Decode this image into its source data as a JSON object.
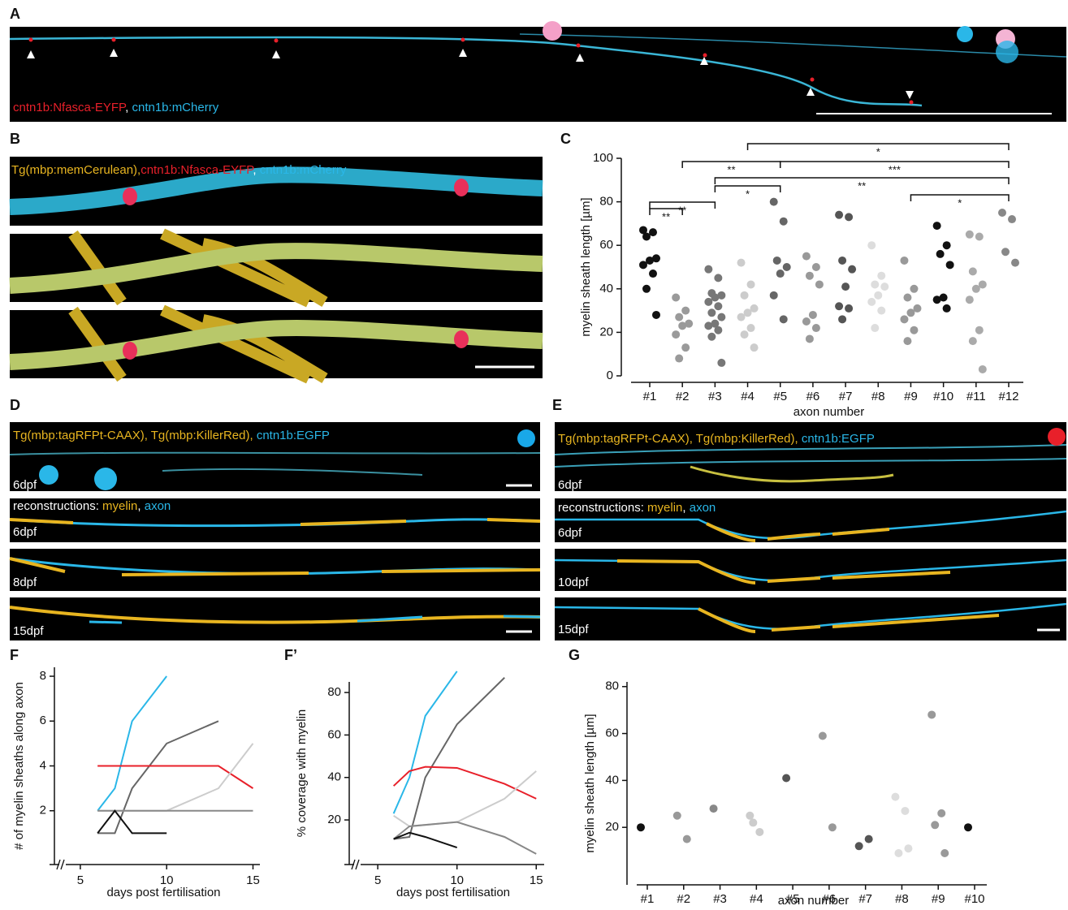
{
  "panels": [
    {
      "label": "A",
      "captions": [
        [
          {
            "text": "cntn1b:Nfasca-EYFP",
            "color": "#e8202a"
          },
          {
            "text": ", ",
            "color": "#ffffff"
          },
          {
            "text": "cntn1b:mCherry",
            "color": "#2ab7e8"
          }
        ]
      ]
    },
    {
      "label": "B",
      "captions": [
        [
          {
            "text": "Tg(mbp:memCerulean),",
            "color": "#e8b520"
          },
          {
            "text": "cntn1b:Nfasca-EYFP",
            "color": "#e8202a"
          },
          {
            "text": ", ",
            "color": "#ffffff"
          },
          {
            "text": "cntn1b:mCherry",
            "color": "#2ab7e8"
          }
        ]
      ]
    },
    {
      "label": "C"
    },
    {
      "label": "D",
      "captions": [
        [
          {
            "text": "Tg(mbp:tagRFPt-CAAX), Tg(mbp:KillerRed), ",
            "color": "#e8b520"
          },
          {
            "text": "cntn1b:EGFP",
            "color": "#2ab7e8"
          }
        ],
        [
          {
            "text": "6dpf",
            "color": "#ffffff"
          }
        ],
        [
          {
            "text": "reconstructions: ",
            "color": "#ffffff"
          },
          {
            "text": "myelin",
            "color": "#e8b520"
          },
          {
            "text": ", ",
            "color": "#ffffff"
          },
          {
            "text": "axon",
            "color": "#2ab7e8"
          }
        ],
        [
          {
            "text": "6dpf",
            "color": "#ffffff"
          }
        ],
        [
          {
            "text": "8dpf",
            "color": "#ffffff"
          }
        ],
        [
          {
            "text": "15dpf",
            "color": "#ffffff"
          }
        ]
      ]
    },
    {
      "label": "E",
      "captions": [
        [
          {
            "text": "Tg(mbp:tagRFPt-CAAX), Tg(mbp:KillerRed), ",
            "color": "#e8b520"
          },
          {
            "text": "cntn1b:EGFP",
            "color": "#2ab7e8"
          }
        ],
        [
          {
            "text": "6dpf",
            "color": "#ffffff"
          }
        ],
        [
          {
            "text": "reconstructions: ",
            "color": "#ffffff"
          },
          {
            "text": "myelin",
            "color": "#e8b520"
          },
          {
            "text": ", ",
            "color": "#ffffff"
          },
          {
            "text": "axon",
            "color": "#2ab7e8"
          }
        ],
        [
          {
            "text": "6dpf",
            "color": "#ffffff"
          }
        ],
        [
          {
            "text": "10dpf",
            "color": "#ffffff"
          }
        ],
        [
          {
            "text": "15dpf",
            "color": "#ffffff"
          }
        ]
      ]
    },
    {
      "label": "F"
    },
    {
      "label": "F’"
    },
    {
      "label": "G"
    }
  ],
  "chart_data": [
    {
      "type": "strip",
      "ylabel": "myelin sheath length [µm]",
      "xlabel": "axon number",
      "categories": [
        "#1",
        "#2",
        "#3",
        "#4",
        "#5",
        "#6",
        "#7",
        "#8",
        "#9",
        "#10",
        "#11",
        "#12"
      ],
      "colors": [
        "#111111",
        "#9a9a9a",
        "#777777",
        "#cccccc",
        "#666666",
        "#999999",
        "#555555",
        "#dddddd",
        "#999999",
        "#111111",
        "#aaaaaa",
        "#888888"
      ],
      "values": [
        [
          67,
          66,
          64,
          54,
          53,
          51,
          47,
          40,
          28
        ],
        [
          36,
          30,
          27,
          24,
          23,
          19,
          13,
          8
        ],
        [
          49,
          45,
          38,
          37,
          36,
          34,
          32,
          29,
          27,
          24,
          23,
          21,
          18,
          6
        ],
        [
          52,
          42,
          37,
          31,
          29,
          27,
          22,
          19,
          13
        ],
        [
          80,
          71,
          53,
          50,
          47,
          37,
          26
        ],
        [
          55,
          50,
          46,
          42,
          28,
          25,
          22,
          17
        ],
        [
          74,
          73,
          53,
          49,
          41,
          32,
          31,
          26
        ],
        [
          60,
          46,
          42,
          41,
          37,
          34,
          30,
          22
        ],
        [
          53,
          40,
          36,
          31,
          29,
          26,
          21,
          16
        ],
        [
          69,
          60,
          56,
          51,
          36,
          35,
          31
        ],
        [
          65,
          64,
          48,
          42,
          40,
          35,
          21,
          16,
          3
        ],
        [
          75,
          72,
          57,
          52
        ]
      ],
      "ylim": [
        0,
        100
      ],
      "yticks": [
        0,
        20,
        40,
        60,
        80,
        100
      ],
      "comparisons": [
        {
          "from": "#4",
          "to": "#12",
          "label": "*"
        },
        {
          "from": "#2",
          "to": "#5",
          "label": "**"
        },
        {
          "from": "#5",
          "to": "#12",
          "label": "***"
        },
        {
          "from": "#3",
          "to": "#12",
          "label": "**"
        },
        {
          "from": "#3",
          "to": "#5",
          "label": "*"
        },
        {
          "from": "#9",
          "to": "#12",
          "label": "*"
        },
        {
          "from": "#1",
          "to": "#3",
          "label": "**"
        },
        {
          "from": "#1",
          "to": "#2",
          "label": "**"
        }
      ]
    },
    {
      "type": "line",
      "ylabel": "# of myelin sheaths along axon",
      "xlabel": "days post fertilisation",
      "xlim": [
        3.5,
        15.4
      ],
      "xticks": [
        5,
        10,
        15
      ],
      "ylim": [
        -0.4,
        8.4
      ],
      "yticks": [
        2,
        4,
        6,
        8
      ],
      "series": [
        {
          "color": "#2ab7e8",
          "x": [
            6,
            7,
            8,
            10
          ],
          "values": [
            2,
            3,
            6,
            8
          ]
        },
        {
          "color": "#666666",
          "x": [
            6,
            7,
            8,
            10,
            13
          ],
          "values": [
            1,
            1,
            3,
            5,
            6
          ]
        },
        {
          "color": "#e8202a",
          "x": [
            6,
            13,
            15
          ],
          "values": [
            4,
            4,
            3
          ]
        },
        {
          "color": "#cccccc",
          "x": [
            6,
            10,
            13,
            15
          ],
          "values": [
            2,
            2,
            3,
            5
          ]
        },
        {
          "color": "#888888",
          "x": [
            6,
            15
          ],
          "values": [
            2,
            2
          ]
        },
        {
          "color": "#111111",
          "x": [
            6,
            7,
            8,
            10
          ],
          "values": [
            1,
            2,
            1,
            1
          ]
        }
      ]
    },
    {
      "type": "line",
      "ylabel": "% coverage with myelin",
      "xlabel": "days post fertilisation",
      "xlim": [
        3.2,
        15.5
      ],
      "xticks": [
        5,
        10,
        15
      ],
      "ylim": [
        -1,
        85
      ],
      "yticks": [
        20,
        40,
        60,
        80
      ],
      "series": [
        {
          "color": "#2ab7e8",
          "x": [
            6,
            7,
            8,
            10
          ],
          "values": [
            23,
            40,
            69,
            90
          ]
        },
        {
          "color": "#666666",
          "x": [
            6,
            7,
            8,
            10,
            13
          ],
          "values": [
            11,
            12,
            40,
            65,
            87
          ]
        },
        {
          "color": "#e8202a",
          "x": [
            6,
            7,
            8,
            10,
            13,
            15
          ],
          "values": [
            36,
            43,
            45,
            44.5,
            37,
            30
          ]
        },
        {
          "color": "#cccccc",
          "x": [
            6,
            7,
            10,
            13,
            15
          ],
          "values": [
            22,
            17,
            19,
            30,
            43
          ]
        },
        {
          "color": "#888888",
          "x": [
            6,
            7,
            10,
            13,
            15
          ],
          "values": [
            11,
            17,
            19,
            12,
            4
          ]
        },
        {
          "color": "#111111",
          "x": [
            6,
            7,
            8,
            10
          ],
          "values": [
            11,
            14,
            12,
            7
          ]
        }
      ]
    },
    {
      "type": "strip",
      "ylabel": "myelin sheath length [µm]",
      "xlabel": "axon number",
      "categories": [
        "#1",
        "#2",
        "#3",
        "#4",
        "#5",
        "#6",
        "#7",
        "#8",
        "#9",
        "#10"
      ],
      "colors": [
        "#111111",
        "#999999",
        "#888888",
        "#cccccc",
        "#555555",
        "#999999",
        "#555555",
        "#dddddd",
        "#999999",
        "#111111"
      ],
      "values": [
        [
          20
        ],
        [
          25,
          15
        ],
        [
          28
        ],
        [
          25,
          18,
          22
        ],
        [
          41
        ],
        [
          59,
          20
        ],
        [
          12,
          15
        ],
        [
          33,
          27,
          9,
          11
        ],
        [
          68,
          26,
          21,
          9
        ],
        [
          20
        ]
      ],
      "ylim": [
        -4.5,
        82
      ],
      "yticks": [
        20,
        40,
        60,
        80
      ]
    }
  ]
}
